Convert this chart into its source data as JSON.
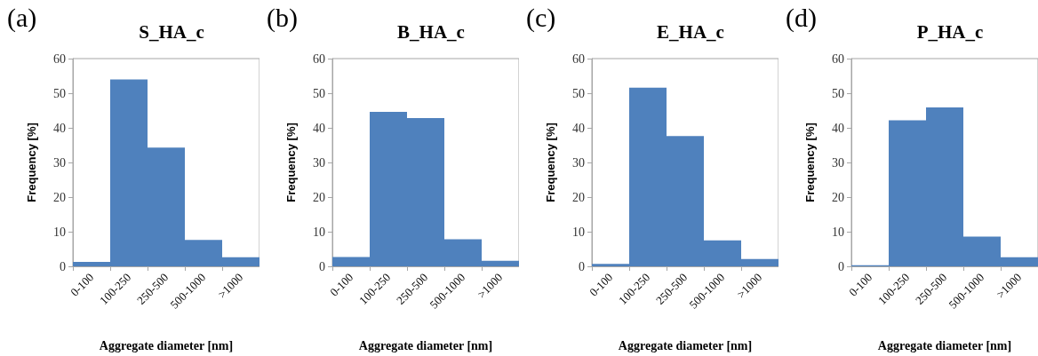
{
  "chart_data": [
    {
      "type": "bar",
      "title": "S_HA_c",
      "annotations": [
        "(a)"
      ],
      "xlabel": "Aggregate diameter [nm]",
      "ylabel": "Frequency [%]",
      "categories": [
        "0-100",
        "100-250",
        "250-500",
        "500-1000",
        ">1000"
      ],
      "values": [
        1.3,
        54,
        34.3,
        7.6,
        2.6
      ],
      "color": "#4f81bd",
      "ylim": [
        0,
        60
      ],
      "yticks": [
        0,
        10,
        20,
        30,
        40,
        50,
        60
      ],
      "grid": false
    },
    {
      "type": "bar",
      "title": "B_HA_c",
      "annotations": [
        "(b)"
      ],
      "xlabel": "Aggregate diameter [nm]",
      "ylabel": "Frequency [%]",
      "categories": [
        "0-100",
        "100-250",
        "250-500",
        "500-1000",
        ">1000"
      ],
      "values": [
        2.7,
        44.6,
        42.8,
        7.8,
        1.6
      ],
      "color": "#4f81bd",
      "ylim": [
        0,
        60
      ],
      "yticks": [
        0,
        10,
        20,
        30,
        40,
        50,
        60
      ],
      "grid": false
    },
    {
      "type": "bar",
      "title": "E_HA_c",
      "annotations": [
        "(c)"
      ],
      "xlabel": "Aggregate diameter [nm]",
      "ylabel": "Frequency [%]",
      "categories": [
        "0-100",
        "100-250",
        "250-500",
        "500-1000",
        ">1000"
      ],
      "values": [
        0.7,
        51.6,
        37.6,
        7.5,
        2.1
      ],
      "color": "#4f81bd",
      "ylim": [
        0,
        60
      ],
      "yticks": [
        0,
        10,
        20,
        30,
        40,
        50,
        60
      ],
      "grid": false
    },
    {
      "type": "bar",
      "title": "P_HA_c",
      "annotations": [
        "(d)"
      ],
      "xlabel": "Aggregate diameter [nm]",
      "ylabel": "Frequency [%]",
      "categories": [
        "0-100",
        "100-250",
        "250-500",
        "500-1000",
        ">1000"
      ],
      "values": [
        0.3,
        42.2,
        45.9,
        8.6,
        2.6
      ],
      "color": "#4f81bd",
      "ylim": [
        0,
        60
      ],
      "yticks": [
        0,
        10,
        20,
        30,
        40,
        50,
        60
      ],
      "grid": false
    }
  ]
}
